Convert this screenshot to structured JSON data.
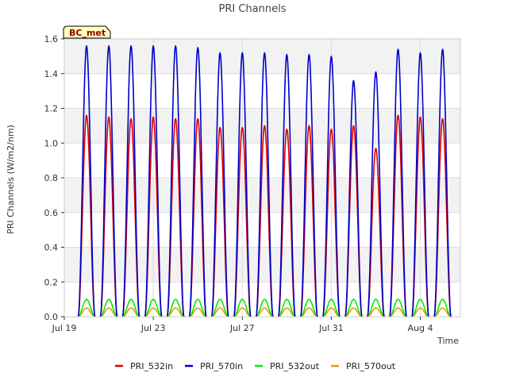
{
  "chart_data": {
    "type": "line",
    "title": "PRI Channels",
    "xlabel": "Time",
    "ylabel": "PRI Channels (W/m2/nm)",
    "site_badge": "BC_met",
    "ylim": [
      0,
      1.6
    ],
    "yticks": [
      0.0,
      0.2,
      0.4,
      0.6,
      0.8,
      1.0,
      1.2,
      1.4,
      1.6
    ],
    "ytick_labels": [
      "0.0",
      "0.2",
      "0.4",
      "0.6",
      "0.8",
      "1.0",
      "1.2",
      "1.4",
      "1.6"
    ],
    "xlim_days": [
      0,
      17.8
    ],
    "xticks_days": [
      0,
      4,
      8,
      12,
      16
    ],
    "xtick_labels": [
      "Jul 19",
      "Jul 23",
      "Jul 27",
      "Jul 31",
      "Aug 4"
    ],
    "grid": true,
    "legend_position": "bottom",
    "day_index_start": "Jul 19",
    "daily_peak_day_index": [
      1,
      2,
      3,
      4,
      5,
      6,
      7,
      8,
      9,
      10,
      11,
      12,
      13,
      14,
      15,
      16,
      17
    ],
    "series": [
      {
        "name": "PRI_532in",
        "color": "#dd0000",
        "daily_peaks": [
          1.16,
          1.15,
          1.14,
          1.15,
          1.14,
          1.14,
          1.09,
          1.09,
          1.1,
          1.08,
          1.1,
          1.08,
          1.1,
          0.97,
          1.16,
          1.15,
          1.14
        ]
      },
      {
        "name": "PRI_570in",
        "color": "#0000cc",
        "daily_peaks": [
          1.56,
          1.56,
          1.56,
          1.56,
          1.56,
          1.55,
          1.52,
          1.52,
          1.52,
          1.51,
          1.51,
          1.5,
          1.36,
          1.41,
          1.54,
          1.52,
          1.54
        ]
      },
      {
        "name": "PRI_532out",
        "color": "#00ee00",
        "daily_peaks": [
          0.1,
          0.1,
          0.1,
          0.1,
          0.1,
          0.1,
          0.1,
          0.1,
          0.1,
          0.1,
          0.1,
          0.1,
          0.1,
          0.1,
          0.1,
          0.1,
          0.1
        ]
      },
      {
        "name": "PRI_570out",
        "color": "#e69f00",
        "daily_peaks": [
          0.05,
          0.05,
          0.05,
          0.05,
          0.05,
          0.05,
          0.05,
          0.05,
          0.05,
          0.05,
          0.05,
          0.05,
          0.05,
          0.05,
          0.05,
          0.05,
          0.05
        ]
      }
    ]
  }
}
